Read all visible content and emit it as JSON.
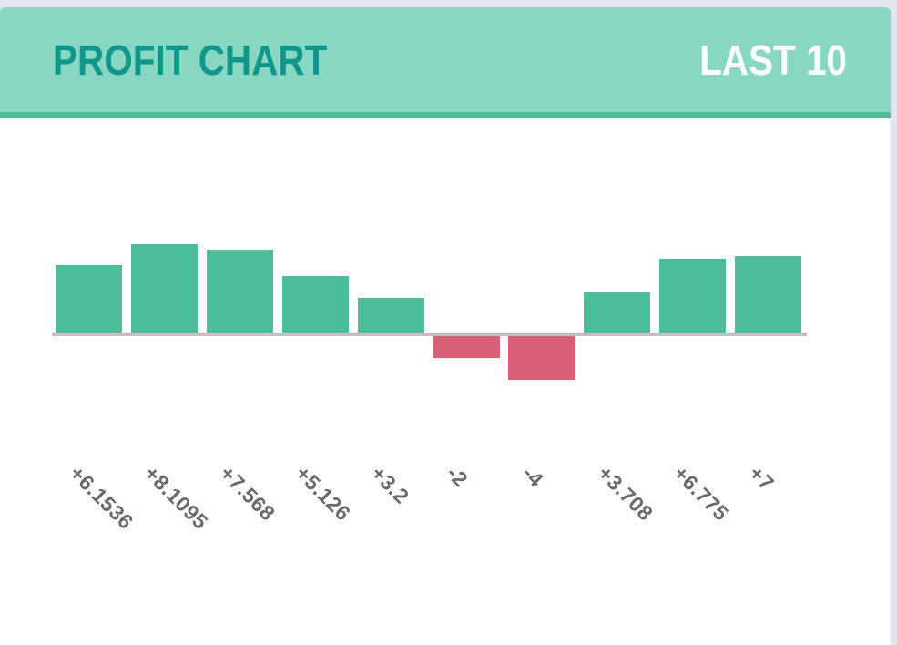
{
  "header": {
    "title": "PROFIT CHART",
    "badge": "LAST 10"
  },
  "colors": {
    "page_bg": "#e3e6ec",
    "card_bg": "#ffffff",
    "header_bg": "#87d7c3",
    "header_border": "#4dbc9a",
    "title": "#11968a",
    "badge_text": "#ffffff",
    "positive": "#4bbd9b",
    "negative": "#d95f77",
    "baseline": "#c1bfbf",
    "label": "#6a6a6a"
  },
  "chart_data": {
    "type": "bar",
    "title": "PROFIT CHART",
    "subtitle": "LAST 10",
    "categories": [
      "+6.1536",
      "+8.1095",
      "+7.568",
      "+5.126",
      "+3.2",
      "-2",
      "-4",
      "+3.708",
      "+6.775",
      "+7"
    ],
    "values": [
      6.1536,
      8.1095,
      7.568,
      5.126,
      3.2,
      -2,
      -4,
      3.708,
      6.775,
      7
    ],
    "xlabel": "",
    "ylabel": "",
    "ylim": [
      -4,
      8.1095
    ],
    "grid": false,
    "legend_position": "none",
    "positive_color": "#4bbd9b",
    "negative_color": "#d95f77",
    "label_rotation_deg": 45
  }
}
